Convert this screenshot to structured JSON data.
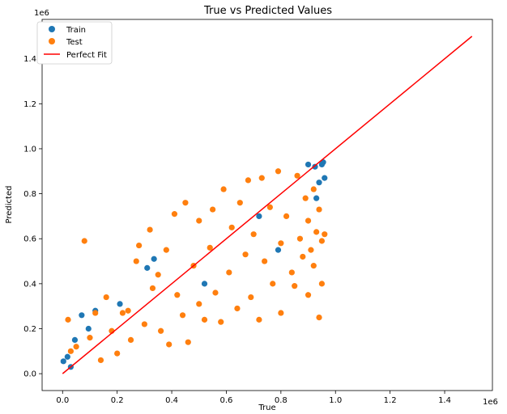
{
  "chart_data": {
    "type": "scatter",
    "title": "True vs Predicted Values",
    "xlabel": "True",
    "ylabel": "Predicted",
    "x_offset_label": "1e6",
    "y_offset_label": "1e6",
    "xlim": [
      -0.075,
      1.575
    ],
    "ylim": [
      -0.075,
      1.575
    ],
    "xticks": [
      0.0,
      0.2,
      0.4,
      0.6,
      0.8,
      1.0,
      1.2,
      1.4
    ],
    "xtick_labels": [
      "0.0",
      "0.2",
      "0.4",
      "0.6",
      "0.8",
      "1.0",
      "1.2",
      "1.4"
    ],
    "yticks": [
      0.0,
      0.2,
      0.4,
      0.6,
      0.8,
      1.0,
      1.2,
      1.4
    ],
    "ytick_labels": [
      "0.0",
      "0.2",
      "0.4",
      "0.6",
      "0.8",
      "1.0",
      "1.2",
      "1.4"
    ],
    "grid": false,
    "legend_position": "top-left",
    "series": [
      {
        "name": "Train",
        "color": "#1f77b4",
        "points": [
          [
            0.003,
            0.055
          ],
          [
            0.018,
            0.075
          ],
          [
            0.03,
            0.03
          ],
          [
            0.045,
            0.15
          ],
          [
            0.07,
            0.26
          ],
          [
            0.095,
            0.2
          ],
          [
            0.12,
            0.28
          ],
          [
            0.21,
            0.31
          ],
          [
            0.31,
            0.47
          ],
          [
            0.335,
            0.51
          ],
          [
            0.52,
            0.4
          ],
          [
            0.72,
            0.7
          ],
          [
            0.79,
            0.55
          ],
          [
            0.9,
            0.93
          ],
          [
            0.925,
            0.92
          ],
          [
            0.95,
            0.93
          ],
          [
            0.955,
            0.94
          ],
          [
            0.96,
            0.87
          ],
          [
            0.94,
            0.85
          ],
          [
            0.93,
            0.78
          ]
        ]
      },
      {
        "name": "Test",
        "color": "#ff7f0e",
        "points": [
          [
            0.02,
            0.24
          ],
          [
            0.03,
            0.1
          ],
          [
            0.05,
            0.12
          ],
          [
            0.08,
            0.59
          ],
          [
            0.1,
            0.16
          ],
          [
            0.12,
            0.27
          ],
          [
            0.14,
            0.06
          ],
          [
            0.16,
            0.34
          ],
          [
            0.18,
            0.19
          ],
          [
            0.2,
            0.09
          ],
          [
            0.22,
            0.27
          ],
          [
            0.24,
            0.28
          ],
          [
            0.25,
            0.15
          ],
          [
            0.27,
            0.5
          ],
          [
            0.28,
            0.57
          ],
          [
            0.3,
            0.22
          ],
          [
            0.32,
            0.64
          ],
          [
            0.33,
            0.38
          ],
          [
            0.35,
            0.44
          ],
          [
            0.36,
            0.19
          ],
          [
            0.38,
            0.55
          ],
          [
            0.39,
            0.13
          ],
          [
            0.41,
            0.71
          ],
          [
            0.42,
            0.35
          ],
          [
            0.44,
            0.26
          ],
          [
            0.45,
            0.76
          ],
          [
            0.46,
            0.14
          ],
          [
            0.48,
            0.48
          ],
          [
            0.5,
            0.31
          ],
          [
            0.5,
            0.68
          ],
          [
            0.52,
            0.24
          ],
          [
            0.54,
            0.56
          ],
          [
            0.55,
            0.73
          ],
          [
            0.56,
            0.36
          ],
          [
            0.58,
            0.23
          ],
          [
            0.59,
            0.82
          ],
          [
            0.61,
            0.45
          ],
          [
            0.62,
            0.65
          ],
          [
            0.64,
            0.29
          ],
          [
            0.65,
            0.76
          ],
          [
            0.67,
            0.53
          ],
          [
            0.68,
            0.86
          ],
          [
            0.69,
            0.34
          ],
          [
            0.7,
            0.62
          ],
          [
            0.72,
            0.24
          ],
          [
            0.73,
            0.87
          ],
          [
            0.74,
            0.5
          ],
          [
            0.76,
            0.74
          ],
          [
            0.77,
            0.4
          ],
          [
            0.79,
            0.9
          ],
          [
            0.8,
            0.27
          ],
          [
            0.8,
            0.58
          ],
          [
            0.82,
            0.7
          ],
          [
            0.84,
            0.45
          ],
          [
            0.85,
            0.39
          ],
          [
            0.86,
            0.88
          ],
          [
            0.87,
            0.6
          ],
          [
            0.88,
            0.52
          ],
          [
            0.89,
            0.78
          ],
          [
            0.9,
            0.68
          ],
          [
            0.9,
            0.35
          ],
          [
            0.91,
            0.55
          ],
          [
            0.92,
            0.82
          ],
          [
            0.92,
            0.48
          ],
          [
            0.93,
            0.63
          ],
          [
            0.94,
            0.73
          ],
          [
            0.94,
            0.25
          ],
          [
            0.95,
            0.59
          ],
          [
            0.95,
            0.4
          ],
          [
            0.96,
            0.62
          ]
        ]
      }
    ],
    "reference_line": {
      "name": "Perfect Fit",
      "color": "#ff0000",
      "x": [
        0.0,
        1.5
      ],
      "y": [
        0.0,
        1.5
      ]
    }
  }
}
